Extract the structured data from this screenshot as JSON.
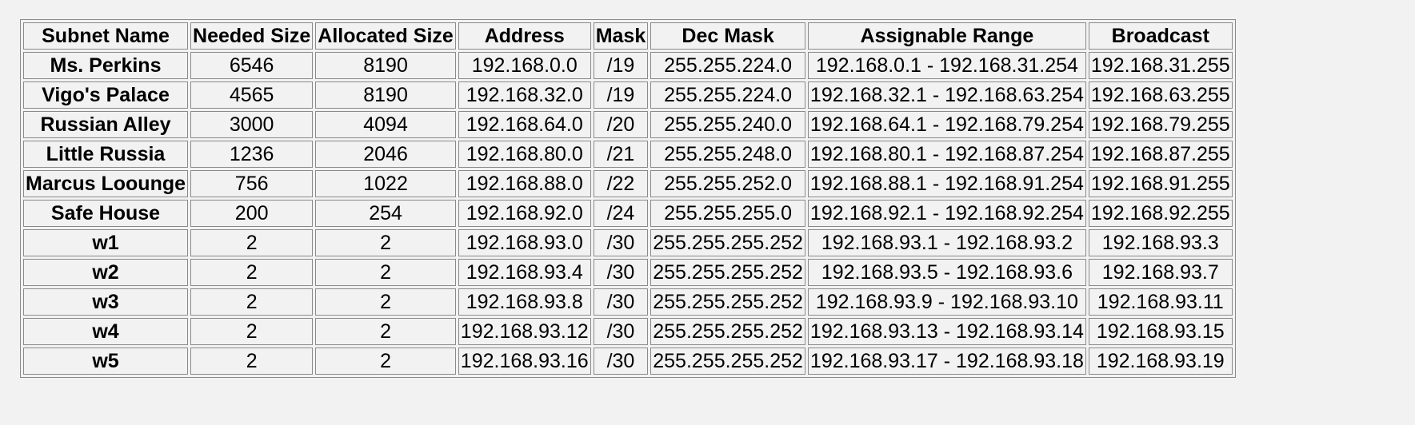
{
  "table": {
    "headers": [
      "Subnet Name",
      "Needed Size",
      "Allocated Size",
      "Address",
      "Mask",
      "Dec Mask",
      "Assignable Range",
      "Broadcast"
    ],
    "rows": [
      {
        "name": "Ms. Perkins",
        "needed": "6546",
        "allocated": "8190",
        "address": "192.168.0.0",
        "mask": "/19",
        "dec_mask": "255.255.224.0",
        "range": "192.168.0.1 - 192.168.31.254",
        "broadcast": "192.168.31.255"
      },
      {
        "name": "Vigo's Palace",
        "needed": "4565",
        "allocated": "8190",
        "address": "192.168.32.0",
        "mask": "/19",
        "dec_mask": "255.255.224.0",
        "range": "192.168.32.1 - 192.168.63.254",
        "broadcast": "192.168.63.255"
      },
      {
        "name": "Russian Alley",
        "needed": "3000",
        "allocated": "4094",
        "address": "192.168.64.0",
        "mask": "/20",
        "dec_mask": "255.255.240.0",
        "range": "192.168.64.1 - 192.168.79.254",
        "broadcast": "192.168.79.255"
      },
      {
        "name": "Little Russia",
        "needed": "1236",
        "allocated": "2046",
        "address": "192.168.80.0",
        "mask": "/21",
        "dec_mask": "255.255.248.0",
        "range": "192.168.80.1 - 192.168.87.254",
        "broadcast": "192.168.87.255"
      },
      {
        "name": "Marcus Loounge",
        "needed": "756",
        "allocated": "1022",
        "address": "192.168.88.0",
        "mask": "/22",
        "dec_mask": "255.255.252.0",
        "range": "192.168.88.1 - 192.168.91.254",
        "broadcast": "192.168.91.255"
      },
      {
        "name": "Safe House",
        "needed": "200",
        "allocated": "254",
        "address": "192.168.92.0",
        "mask": "/24",
        "dec_mask": "255.255.255.0",
        "range": "192.168.92.1 - 192.168.92.254",
        "broadcast": "192.168.92.255"
      },
      {
        "name": "w1",
        "needed": "2",
        "allocated": "2",
        "address": "192.168.93.0",
        "mask": "/30",
        "dec_mask": "255.255.255.252",
        "range": "192.168.93.1 - 192.168.93.2",
        "broadcast": "192.168.93.3"
      },
      {
        "name": "w2",
        "needed": "2",
        "allocated": "2",
        "address": "192.168.93.4",
        "mask": "/30",
        "dec_mask": "255.255.255.252",
        "range": "192.168.93.5 - 192.168.93.6",
        "broadcast": "192.168.93.7"
      },
      {
        "name": "w3",
        "needed": "2",
        "allocated": "2",
        "address": "192.168.93.8",
        "mask": "/30",
        "dec_mask": "255.255.255.252",
        "range": "192.168.93.9 - 192.168.93.10",
        "broadcast": "192.168.93.11"
      },
      {
        "name": "w4",
        "needed": "2",
        "allocated": "2",
        "address": "192.168.93.12",
        "mask": "/30",
        "dec_mask": "255.255.255.252",
        "range": "192.168.93.13 - 192.168.93.14",
        "broadcast": "192.168.93.15"
      },
      {
        "name": "w5",
        "needed": "2",
        "allocated": "2",
        "address": "192.168.93.16",
        "mask": "/30",
        "dec_mask": "255.255.255.252",
        "range": "192.168.93.17 - 192.168.93.18",
        "broadcast": "192.168.93.19"
      }
    ]
  }
}
